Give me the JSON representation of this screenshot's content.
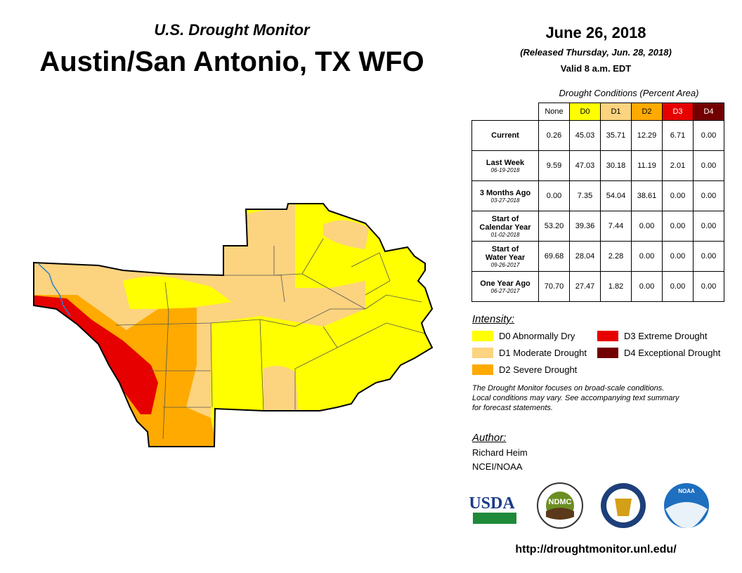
{
  "header": {
    "subtitle": "U.S. Drought Monitor",
    "title": "Austin/San Antonio, TX WFO"
  },
  "date": {
    "date": "June 26, 2018",
    "released": "(Released Thursday, Jun. 28, 2018)",
    "valid": "Valid 8 a.m. EDT"
  },
  "table": {
    "caption": "Drought Conditions (Percent Area)",
    "columns": [
      {
        "label": "None",
        "color": "#ffffff",
        "text": "#000000"
      },
      {
        "label": "D0",
        "color": "#ffff00",
        "text": "#000000"
      },
      {
        "label": "D1",
        "color": "#fcd37f",
        "text": "#000000"
      },
      {
        "label": "D2",
        "color": "#ffaa00",
        "text": "#000000"
      },
      {
        "label": "D3",
        "color": "#e60000",
        "text": "#ffffff"
      },
      {
        "label": "D4",
        "color": "#730000",
        "text": "#ffffff"
      }
    ],
    "rows": [
      {
        "label": [
          "Current"
        ],
        "values": [
          "0.26",
          "45.03",
          "35.71",
          "12.29",
          "6.71",
          "0.00"
        ]
      },
      {
        "label": [
          "Last Week"
        ],
        "date": "06-19-2018",
        "values": [
          "9.59",
          "47.03",
          "30.18",
          "11.19",
          "2.01",
          "0.00"
        ]
      },
      {
        "label": [
          "3 Months Ago"
        ],
        "date": "03-27-2018",
        "values": [
          "0.00",
          "7.35",
          "54.04",
          "38.61",
          "0.00",
          "0.00"
        ]
      },
      {
        "label": [
          "Start of",
          "Calendar Year"
        ],
        "date": "01-02-2018",
        "values": [
          "53.20",
          "39.36",
          "7.44",
          "0.00",
          "0.00",
          "0.00"
        ]
      },
      {
        "label": [
          "Start of",
          "Water Year"
        ],
        "date": "09-26-2017",
        "values": [
          "69.68",
          "28.04",
          "2.28",
          "0.00",
          "0.00",
          "0.00"
        ]
      },
      {
        "label": [
          "One Year Ago"
        ],
        "date": "06-27-2017",
        "values": [
          "70.70",
          "27.47",
          "1.82",
          "0.00",
          "0.00",
          "0.00"
        ]
      }
    ]
  },
  "legend": {
    "title": "Intensity:",
    "items": [
      {
        "label": "D0 Abnormally Dry",
        "color": "#ffff00"
      },
      {
        "label": "D3 Extreme Drought",
        "color": "#e60000"
      },
      {
        "label": "D1 Moderate Drought",
        "color": "#fcd37f"
      },
      {
        "label": "D4 Exceptional Drought",
        "color": "#730000"
      },
      {
        "label": "D2 Severe Drought",
        "color": "#ffaa00"
      }
    ]
  },
  "note": [
    "The Drought Monitor focuses on broad-scale conditions.",
    "Local conditions may vary. See accompanying text summary",
    "for forecast statements."
  ],
  "author": {
    "title": "Author:",
    "name": "Richard Heim",
    "org": "NCEI/NOAA"
  },
  "logos": {
    "usda": "USDA",
    "ndmc": "NDMC",
    "noaa": "NOAA"
  },
  "url": "http://droughtmonitor.unl.edu/"
}
